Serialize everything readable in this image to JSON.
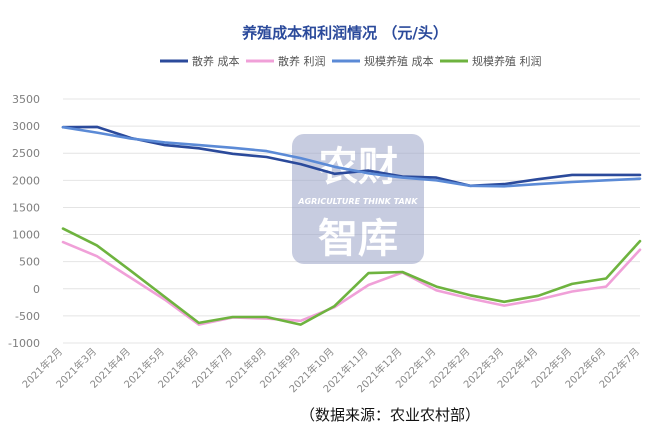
{
  "chart_data": {
    "type": "line",
    "title": "养殖成本和利润情况 （元/头）",
    "categories": [
      "2021年2月",
      "2021年3月",
      "2021年4月",
      "2021年5月",
      "2021年6月",
      "2021年7月",
      "2021年8月",
      "2021年9月",
      "2021年10月",
      "2021年11月",
      "2021年12月",
      "2022年1月",
      "2022年2月",
      "2022年3月",
      "2022年4月",
      "2022年5月",
      "2022年6月",
      "2022年7月"
    ],
    "series": [
      {
        "name": "散养 成本",
        "color": "#2b4a9b",
        "values": [
          2980,
          2985,
          2780,
          2650,
          2590,
          2490,
          2430,
          2300,
          2120,
          2180,
          2070,
          2050,
          1900,
          1930,
          2020,
          2100,
          2100,
          2100
        ]
      },
      {
        "name": "散养 利润",
        "color": "#f0a0d8",
        "values": [
          860,
          600,
          200,
          -200,
          -660,
          -530,
          -550,
          -590,
          -340,
          70,
          300,
          -30,
          -180,
          -310,
          -200,
          -50,
          40,
          720
        ]
      },
      {
        "name": "规模养殖 成本",
        "color": "#5b8ad6",
        "values": [
          2980,
          2880,
          2770,
          2700,
          2650,
          2600,
          2540,
          2410,
          2250,
          2130,
          2050,
          2000,
          1900,
          1890,
          1930,
          1970,
          2000,
          2030
        ]
      },
      {
        "name": "规模养殖 利润",
        "color": "#6eb33f",
        "values": [
          1110,
          800,
          330,
          -150,
          -630,
          -520,
          -520,
          -660,
          -320,
          290,
          310,
          40,
          -120,
          -240,
          -130,
          90,
          190,
          880
        ]
      }
    ],
    "ylim": [
      -1000,
      3500
    ],
    "yticks": [
      -1000,
      -500,
      0,
      500,
      1000,
      1500,
      2000,
      2500,
      3000,
      3500
    ],
    "grid": true,
    "legend_position": "top"
  },
  "watermark": {
    "line1": "农财",
    "line2": "AGRICULTURE  THINK  TANK",
    "line3": "智库"
  },
  "source_note": "（数据来源：农业农村部）"
}
